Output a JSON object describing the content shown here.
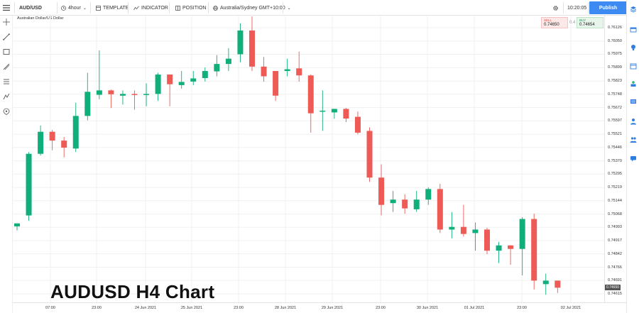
{
  "toolbar": {
    "symbol": "AUD/USD",
    "interval": "4hour",
    "template_label": "TEMPLATE",
    "indicator_label": "INDICATOR",
    "position_label": "POSITION",
    "timezone": "Australia/Sydney GMT+10:00",
    "clock": "10:20:05",
    "publish_label": "Publish"
  },
  "chart": {
    "symbol_full_name": "Australian Dollar/US Dollar",
    "overlay_title": "AUDUSD H4 Chart"
  },
  "trade": {
    "sell_label": "SELL",
    "sell_price": "0.74650",
    "spread": "0.4",
    "buy_label": "BUY",
    "buy_price": "0.74654"
  },
  "current_price": "0.74650",
  "colors": {
    "up": "#0fae7a",
    "down": "#ee5a55",
    "accent": "#3d8bf2"
  },
  "icons": {
    "left_tools": [
      "crosshair-icon",
      "trendline-icon",
      "rectangle-icon",
      "fib-icon",
      "text-icon",
      "pattern-icon",
      "measure-icon"
    ],
    "right_bar": [
      "layers-icon",
      "panel-icon",
      "ideas-icon",
      "calendar-icon",
      "watchlist-icon",
      "user-icon",
      "people-icon",
      "chat-icon"
    ]
  },
  "chart_data": {
    "type": "candlestick",
    "price_axis_ticks": [
      "0.76126",
      "0.76050",
      "0.75975",
      "0.75899",
      "0.75823",
      "0.75748",
      "0.75672",
      "0.75597",
      "0.75521",
      "0.75446",
      "0.75370",
      "0.75295",
      "0.75219",
      "0.75144",
      "0.75068",
      "0.74993",
      "0.74917",
      "0.74842",
      "0.74766",
      "0.74691",
      "0.74615"
    ],
    "ylim": [
      0.7459,
      0.7618
    ],
    "time_axis_labels": [
      "07:00",
      "23:00",
      "24 Jun 2021",
      "25 Jun 2021",
      "23:00",
      "28 Jun 2021",
      "29 Jun 2021",
      "23:00",
      "30 Jun 2021",
      "01 Jul 2021",
      "23:00",
      "02 Jul 2021"
    ],
    "candles": [
      {
        "o": 0.74998,
        "h": 0.75015,
        "l": 0.74975,
        "c": 0.75015
      },
      {
        "o": 0.7506,
        "h": 0.7542,
        "l": 0.7503,
        "c": 0.7541
      },
      {
        "o": 0.7541,
        "h": 0.7557,
        "l": 0.754,
        "c": 0.75535
      },
      {
        "o": 0.75535,
        "h": 0.75545,
        "l": 0.7543,
        "c": 0.75485
      },
      {
        "o": 0.75485,
        "h": 0.75505,
        "l": 0.7539,
        "c": 0.75445
      },
      {
        "o": 0.7544,
        "h": 0.757,
        "l": 0.7542,
        "c": 0.75625
      },
      {
        "o": 0.75625,
        "h": 0.7587,
        "l": 0.756,
        "c": 0.75762
      },
      {
        "o": 0.75745,
        "h": 0.75997,
        "l": 0.7572,
        "c": 0.7577
      },
      {
        "o": 0.7577,
        "h": 0.75775,
        "l": 0.7567,
        "c": 0.75748
      },
      {
        "o": 0.7574,
        "h": 0.7577,
        "l": 0.7569,
        "c": 0.7575
      },
      {
        "o": 0.7575,
        "h": 0.7577,
        "l": 0.7566,
        "c": 0.75745
      },
      {
        "o": 0.75745,
        "h": 0.7581,
        "l": 0.7568,
        "c": 0.7575
      },
      {
        "o": 0.7575,
        "h": 0.7587,
        "l": 0.7571,
        "c": 0.7586
      },
      {
        "o": 0.7586,
        "h": 0.7586,
        "l": 0.7568,
        "c": 0.75805
      },
      {
        "o": 0.758,
        "h": 0.7588,
        "l": 0.7578,
        "c": 0.75818
      },
      {
        "o": 0.7582,
        "h": 0.7588,
        "l": 0.758,
        "c": 0.75838
      },
      {
        "o": 0.7584,
        "h": 0.759,
        "l": 0.7582,
        "c": 0.7588
      },
      {
        "o": 0.75878,
        "h": 0.7597,
        "l": 0.7585,
        "c": 0.7592
      },
      {
        "o": 0.7592,
        "h": 0.7601,
        "l": 0.7588,
        "c": 0.7595
      },
      {
        "o": 0.75975,
        "h": 0.7615,
        "l": 0.7593,
        "c": 0.7611
      },
      {
        "o": 0.7611,
        "h": 0.7619,
        "l": 0.7588,
        "c": 0.75905
      },
      {
        "o": 0.75905,
        "h": 0.7596,
        "l": 0.7582,
        "c": 0.7585
      },
      {
        "o": 0.7588,
        "h": 0.7588,
        "l": 0.7571,
        "c": 0.7574
      },
      {
        "o": 0.7588,
        "h": 0.7595,
        "l": 0.7585,
        "c": 0.7589
      },
      {
        "o": 0.75895,
        "h": 0.7599,
        "l": 0.7582,
        "c": 0.75855
      },
      {
        "o": 0.75855,
        "h": 0.7586,
        "l": 0.7553,
        "c": 0.7564
      },
      {
        "o": 0.7565,
        "h": 0.7577,
        "l": 0.7554,
        "c": 0.75655
      },
      {
        "o": 0.75645,
        "h": 0.75665,
        "l": 0.7561,
        "c": 0.75665
      },
      {
        "o": 0.75665,
        "h": 0.7567,
        "l": 0.7559,
        "c": 0.7561
      },
      {
        "o": 0.7562,
        "h": 0.7565,
        "l": 0.7552,
        "c": 0.7553
      },
      {
        "o": 0.7554,
        "h": 0.7556,
        "l": 0.7525,
        "c": 0.75275
      },
      {
        "o": 0.75275,
        "h": 0.7535,
        "l": 0.7506,
        "c": 0.7512
      },
      {
        "o": 0.7513,
        "h": 0.752,
        "l": 0.7508,
        "c": 0.7515
      },
      {
        "o": 0.7515,
        "h": 0.7518,
        "l": 0.7507,
        "c": 0.751
      },
      {
        "o": 0.75095,
        "h": 0.752,
        "l": 0.7508,
        "c": 0.7515
      },
      {
        "o": 0.7515,
        "h": 0.7522,
        "l": 0.7512,
        "c": 0.7521
      },
      {
        "o": 0.7521,
        "h": 0.7524,
        "l": 0.7496,
        "c": 0.7498
      },
      {
        "o": 0.7498,
        "h": 0.7508,
        "l": 0.7493,
        "c": 0.74995
      },
      {
        "o": 0.74995,
        "h": 0.7512,
        "l": 0.7494,
        "c": 0.74955
      },
      {
        "o": 0.7496,
        "h": 0.7502,
        "l": 0.7486,
        "c": 0.7498
      },
      {
        "o": 0.7498,
        "h": 0.7499,
        "l": 0.7484,
        "c": 0.7486
      },
      {
        "o": 0.7486,
        "h": 0.7491,
        "l": 0.7479,
        "c": 0.7489
      },
      {
        "o": 0.7489,
        "h": 0.7489,
        "l": 0.7478,
        "c": 0.7487
      },
      {
        "o": 0.7487,
        "h": 0.7505,
        "l": 0.7472,
        "c": 0.7504
      },
      {
        "o": 0.7504,
        "h": 0.7507,
        "l": 0.7464,
        "c": 0.7469
      },
      {
        "o": 0.7467,
        "h": 0.7473,
        "l": 0.7461,
        "c": 0.7469
      },
      {
        "o": 0.7469,
        "h": 0.7469,
        "l": 0.7462,
        "c": 0.7465
      }
    ]
  }
}
